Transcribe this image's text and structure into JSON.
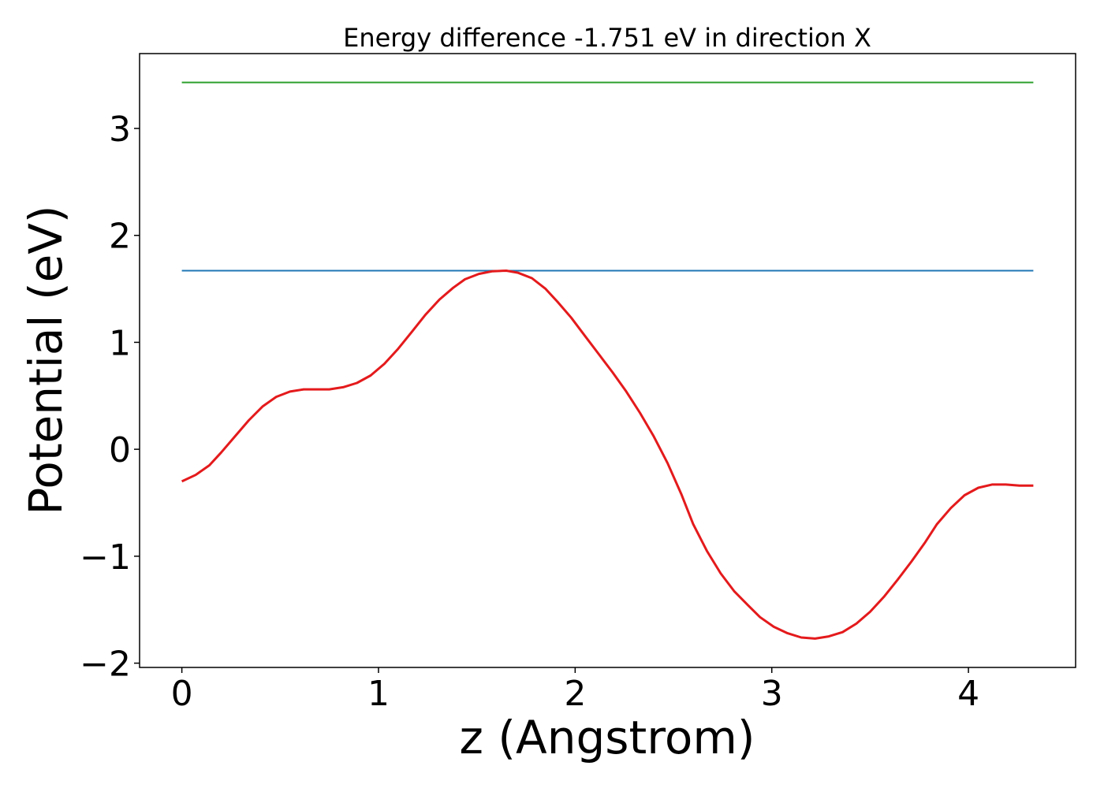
{
  "chart_data": {
    "type": "line",
    "title": "Energy difference -1.751 eV in direction X",
    "xlabel": "z (Angstrom)",
    "ylabel": "Potential (eV)",
    "xlim": [
      -0.215,
      4.545
    ],
    "ylim": [
      -2.04,
      3.7
    ],
    "xticks": [
      0,
      1,
      2,
      3,
      4
    ],
    "xtick_labels": [
      "0",
      "1",
      "2",
      "3",
      "4"
    ],
    "yticks": [
      -2,
      -1,
      0,
      1,
      2,
      3
    ],
    "ytick_labels": [
      "−2",
      "−1",
      "0",
      "1",
      "2",
      "3"
    ],
    "grid": false,
    "legend": "none",
    "series": [
      {
        "color": "#2ca02c",
        "x": [
          0,
          4.33
        ],
        "y": [
          3.43,
          3.43
        ]
      },
      {
        "color": "#1f77b4",
        "x": [
          0,
          4.33
        ],
        "y": [
          1.67,
          1.67
        ]
      },
      {
        "color": "#e41a1c",
        "x": [
          0,
          0.07,
          0.14,
          0.2,
          0.27,
          0.34,
          0.41,
          0.48,
          0.55,
          0.62,
          0.68,
          0.75,
          0.82,
          0.89,
          0.96,
          1.03,
          1.1,
          1.17,
          1.24,
          1.31,
          1.38,
          1.44,
          1.51,
          1.58,
          1.65,
          1.71,
          1.78,
          1.85,
          1.91,
          1.98,
          2.05,
          2.12,
          2.19,
          2.26,
          2.33,
          2.4,
          2.47,
          2.54,
          2.6,
          2.67,
          2.74,
          2.81,
          2.88,
          2.94,
          3.01,
          3.08,
          3.15,
          3.22,
          3.29,
          3.36,
          3.43,
          3.5,
          3.57,
          3.64,
          3.71,
          3.78,
          3.84,
          3.91,
          3.98,
          4.05,
          4.12,
          4.19,
          4.26,
          4.33
        ],
        "y": [
          -0.3,
          -0.24,
          -0.15,
          -0.03,
          0.12,
          0.27,
          0.4,
          0.49,
          0.54,
          0.56,
          0.56,
          0.56,
          0.58,
          0.62,
          0.69,
          0.8,
          0.94,
          1.1,
          1.26,
          1.4,
          1.51,
          1.59,
          1.64,
          1.665,
          1.67,
          1.65,
          1.6,
          1.5,
          1.38,
          1.23,
          1.06,
          0.89,
          0.72,
          0.54,
          0.34,
          0.12,
          -0.13,
          -0.42,
          -0.7,
          -0.95,
          -1.16,
          -1.33,
          -1.46,
          -1.57,
          -1.66,
          -1.72,
          -1.76,
          -1.77,
          -1.75,
          -1.71,
          -1.63,
          -1.52,
          -1.38,
          -1.22,
          -1.05,
          -0.87,
          -0.7,
          -0.55,
          -0.43,
          -0.36,
          -0.33,
          -0.33,
          -0.34,
          -0.34
        ]
      }
    ]
  }
}
